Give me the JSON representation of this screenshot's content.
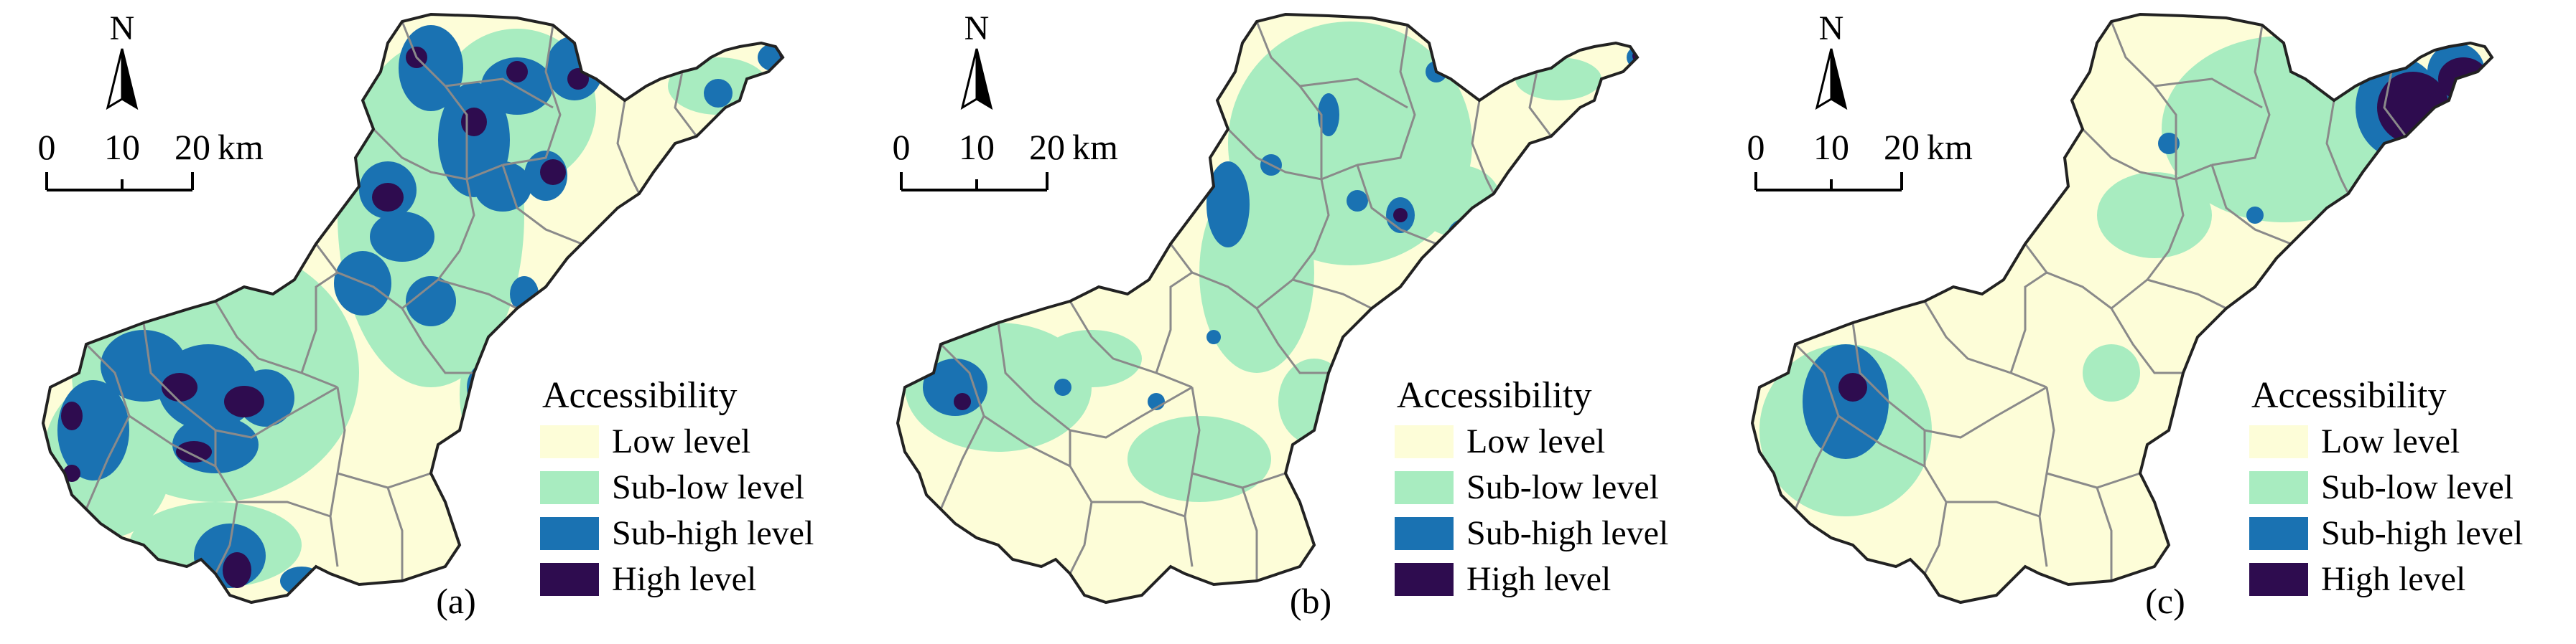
{
  "legend": {
    "title": "Accessibility",
    "levels": [
      {
        "label": "Low level",
        "color": "#fdfdd8"
      },
      {
        "label": "Sub-low level",
        "color": "#a8ecc0"
      },
      {
        "label": "Sub-high level",
        "color": "#1a72b2"
      },
      {
        "label": "High level",
        "color": "#2e0c4f"
      }
    ]
  },
  "north_arrow": {
    "label": "N"
  },
  "scale_bar": {
    "ticks": [
      "0",
      "10",
      "20"
    ],
    "unit": "km"
  },
  "panels": [
    {
      "label": "(a)"
    },
    {
      "label": "(b)"
    },
    {
      "label": "(c)"
    }
  ],
  "boundary_color": "#8a8a8a"
}
